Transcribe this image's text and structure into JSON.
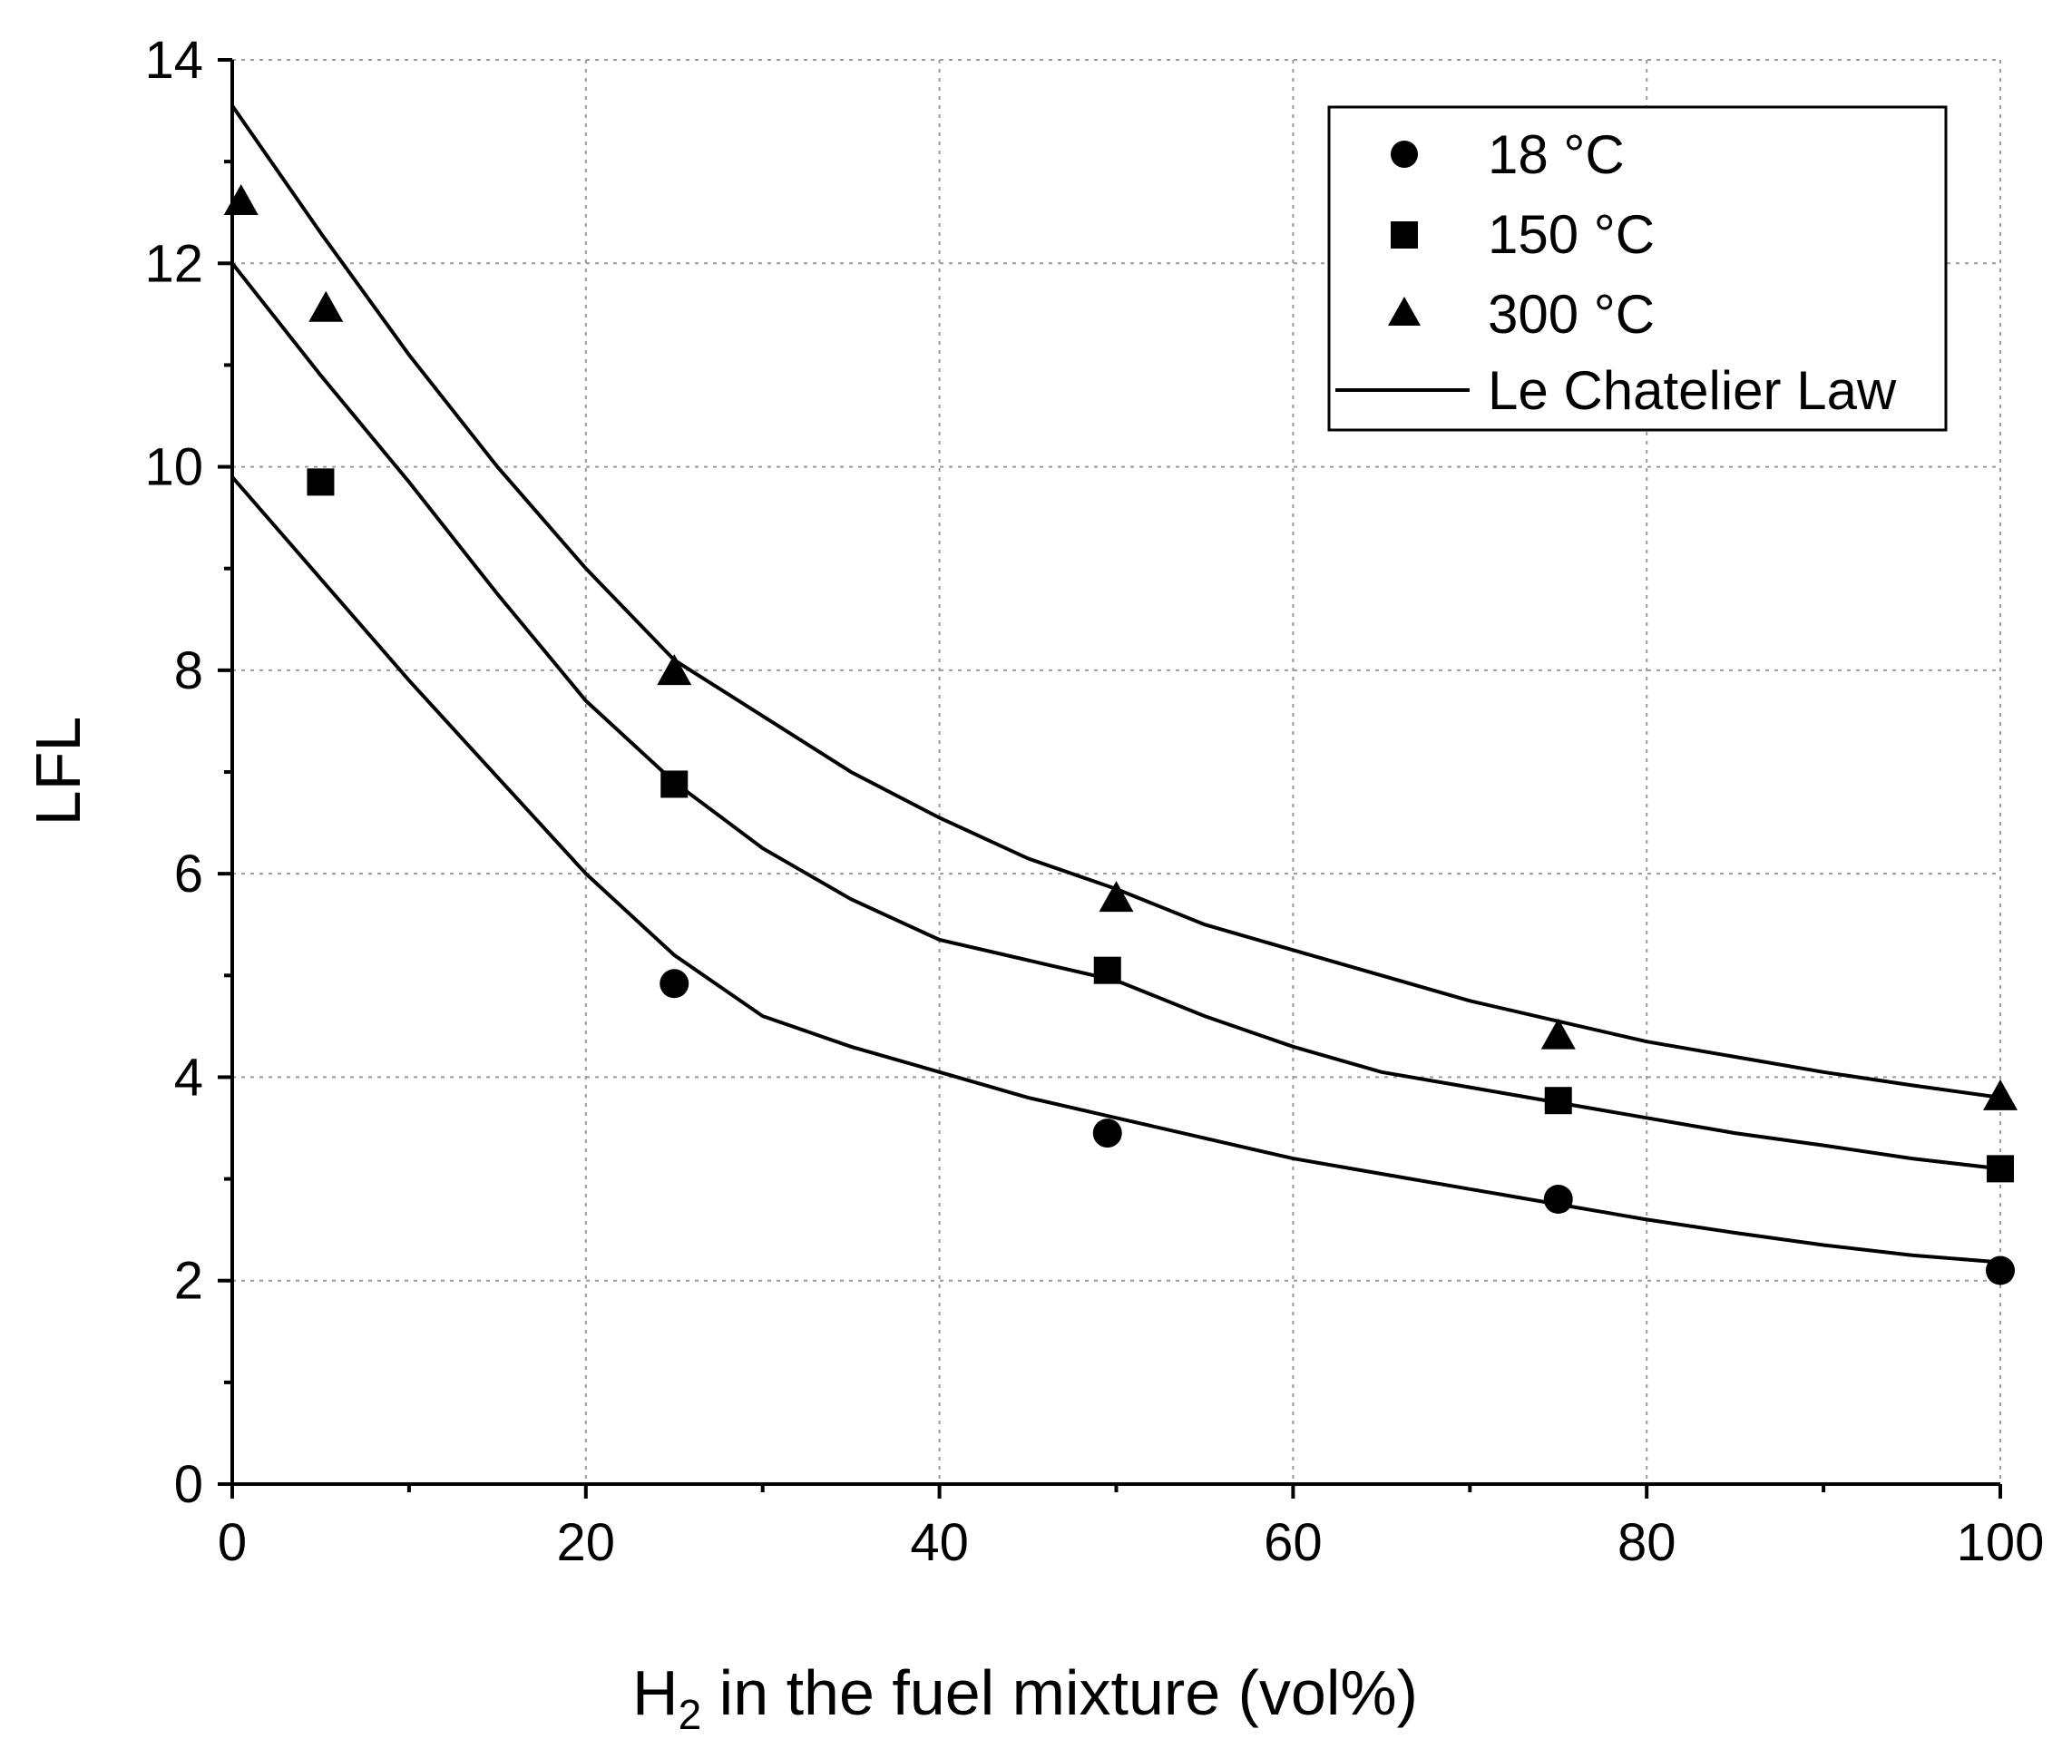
{
  "chart_data": {
    "type": "scatter",
    "title": "",
    "xlabel": "H2 in the fuel mixture (vol%)",
    "xlabel_parts": {
      "main": "H",
      "sub": "2",
      "rest": " in the fuel mixture (vol%)"
    },
    "ylabel": "LFL",
    "xlim": [
      0,
      100
    ],
    "ylim": [
      0,
      14
    ],
    "xticks": [
      0,
      20,
      40,
      60,
      80,
      100
    ],
    "yticks": [
      0,
      2,
      4,
      6,
      8,
      10,
      12,
      14
    ],
    "grid": true,
    "legend_position": "top-right",
    "series": [
      {
        "name": "18 °C",
        "marker": "circle",
        "x": [
          25,
          49.5,
          75,
          100
        ],
        "y": [
          4.92,
          3.45,
          2.8,
          2.1
        ]
      },
      {
        "name": "150 °C",
        "marker": "square",
        "x": [
          5,
          25,
          49.5,
          75,
          100
        ],
        "y": [
          9.85,
          6.88,
          5.05,
          3.77,
          3.1
        ]
      },
      {
        "name": "300 °C",
        "marker": "triangle",
        "x": [
          0.5,
          5.3,
          25,
          50,
          75,
          100
        ],
        "y": [
          12.6,
          11.55,
          7.98,
          5.75,
          4.4,
          3.8
        ]
      }
    ],
    "fit_name": "Le Chatelier Law",
    "fit_lines": [
      {
        "for": "18 °C",
        "x": [
          0,
          5,
          10,
          15,
          20,
          25,
          30,
          35,
          40,
          45,
          50,
          55,
          60,
          65,
          70,
          75,
          80,
          85,
          90,
          95,
          100
        ],
        "y": [
          9.9,
          8.9,
          7.9,
          6.95,
          6.0,
          5.2,
          4.6,
          4.3,
          4.05,
          3.8,
          3.6,
          3.4,
          3.2,
          3.05,
          2.9,
          2.75,
          2.6,
          2.47,
          2.35,
          2.25,
          2.18
        ]
      },
      {
        "for": "150 °C",
        "x": [
          0,
          5,
          10,
          15,
          20,
          25,
          30,
          35,
          40,
          45,
          50,
          55,
          60,
          65,
          70,
          75,
          80,
          85,
          90,
          95,
          100
        ],
        "y": [
          12.0,
          10.9,
          9.85,
          8.75,
          7.7,
          6.9,
          6.25,
          5.75,
          5.35,
          5.15,
          4.95,
          4.6,
          4.3,
          4.05,
          3.9,
          3.75,
          3.6,
          3.45,
          3.33,
          3.2,
          3.1
        ]
      },
      {
        "for": "300 °C",
        "x": [
          0,
          5,
          10,
          15,
          20,
          25,
          30,
          35,
          40,
          45,
          50,
          55,
          60,
          65,
          70,
          75,
          80,
          85,
          90,
          95,
          100
        ],
        "y": [
          13.55,
          12.3,
          11.1,
          10.0,
          9.0,
          8.1,
          7.55,
          7.0,
          6.55,
          6.15,
          5.85,
          5.5,
          5.25,
          5.0,
          4.75,
          4.55,
          4.35,
          4.2,
          4.05,
          3.92,
          3.8
        ]
      }
    ]
  }
}
